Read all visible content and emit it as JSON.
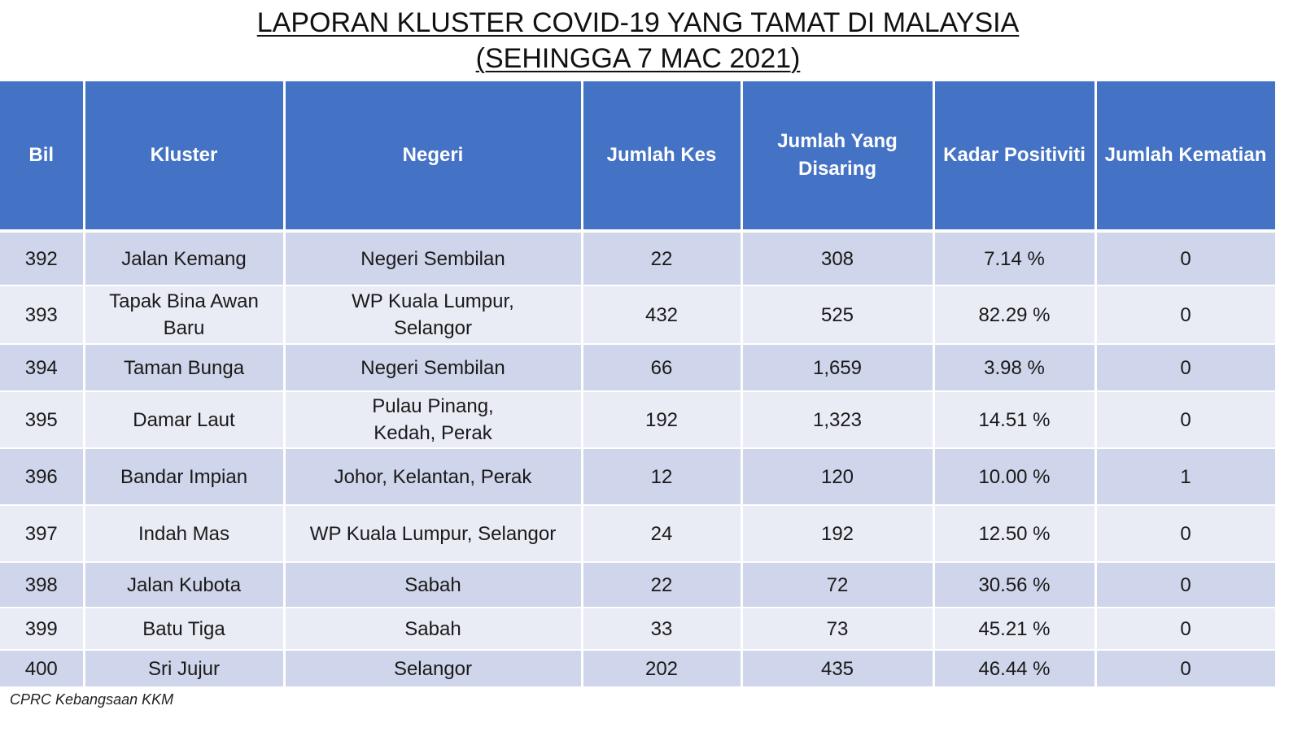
{
  "title": {
    "line1": "LAPORAN KLUSTER COVID-19 YANG TAMAT DI MALAYSIA",
    "line2": "(SEHINGGA  7 MAC 2021)"
  },
  "table": {
    "headers": [
      "Bil",
      "Kluster",
      "Negeri",
      "Jumlah Kes",
      "Jumlah Yang Disaring",
      "Kadar Positiviti",
      "Jumlah Kematian"
    ],
    "rows": [
      [
        "392",
        "Jalan Kemang",
        "Negeri Sembilan",
        "22",
        "308",
        "7.14 %",
        "0"
      ],
      [
        "393",
        "Tapak Bina Awan Baru",
        "WP Kuala Lumpur, Selangor",
        "432",
        "525",
        "82.29 %",
        "0"
      ],
      [
        "394",
        "Taman Bunga",
        "Negeri Sembilan",
        "66",
        "1,659",
        "3.98 %",
        "0"
      ],
      [
        "395",
        "Damar Laut",
        "Pulau Pinang, Kedah, Perak",
        "192",
        "1,323",
        "14.51 %",
        "0"
      ],
      [
        "396",
        "Bandar Impian",
        "Johor, Kelantan, Perak",
        "12",
        "120",
        "10.00 %",
        "1"
      ],
      [
        "397",
        "Indah Mas",
        "WP Kuala Lumpur, Selangor",
        "24",
        "192",
        "12.50 %",
        "0"
      ],
      [
        "398",
        "Jalan Kubota",
        "Sabah",
        "22",
        "72",
        "30.56 %",
        "0"
      ],
      [
        "399",
        "Batu Tiga",
        "Sabah",
        "33",
        "73",
        "45.21 %",
        "0"
      ],
      [
        "400",
        "Sri Jujur",
        "Selangor",
        "202",
        "435",
        "46.44 %",
        "0"
      ]
    ]
  },
  "footer": {
    "source": "CPRC Kebangsaan KKM"
  },
  "colors": {
    "header_bg": "#4472c4",
    "row_dark": "#cfd5ea",
    "row_light": "#e9ebf5"
  }
}
